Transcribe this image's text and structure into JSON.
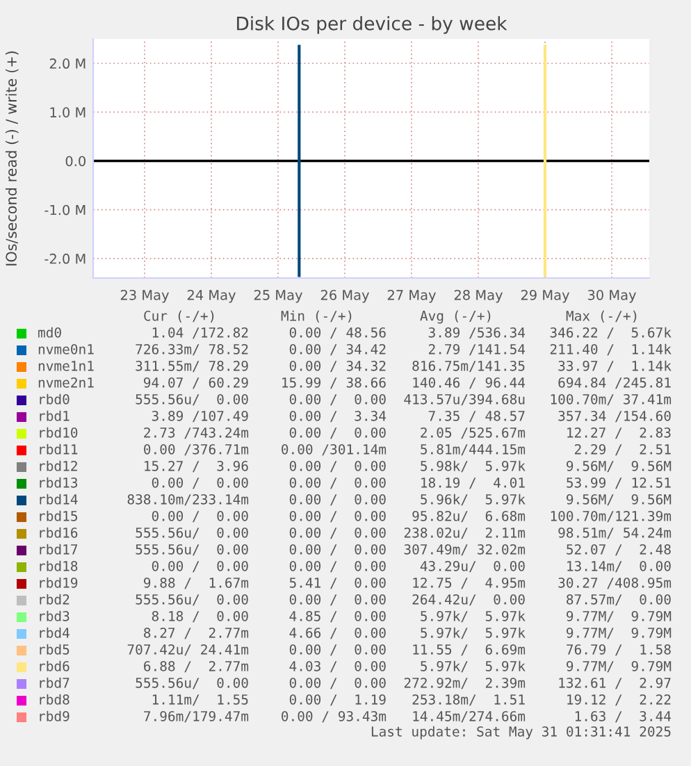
{
  "chart_data": {
    "type": "line",
    "title": "Disk IOs per device - by week",
    "ylabel": "IOs/second read (-) / write (+)",
    "xlim": [
      "2025-05-22T17:30",
      "2025-05-31T01:30"
    ],
    "xticks": [
      {
        "value": "2025-05-23T12:00",
        "label": "23 May"
      },
      {
        "value": "2025-05-24T12:00",
        "label": "24 May"
      },
      {
        "value": "2025-05-25T12:00",
        "label": "25 May"
      },
      {
        "value": "2025-05-26T12:00",
        "label": "26 May"
      },
      {
        "value": "2025-05-27T12:00",
        "label": "27 May"
      },
      {
        "value": "2025-05-28T12:00",
        "label": "28 May"
      },
      {
        "value": "2025-05-29T12:00",
        "label": "29 May"
      },
      {
        "value": "2025-05-30T12:00",
        "label": "30 May"
      }
    ],
    "ylim": [
      -2.4,
      2.5
    ],
    "yticks": [
      {
        "value": -2,
        "label": "-2.0 M"
      },
      {
        "value": -1,
        "label": "-1.0 M"
      },
      {
        "value": 0,
        "label": "0.0"
      },
      {
        "value": 1,
        "label": "1.0 M"
      },
      {
        "value": 2,
        "label": "2.0 M"
      }
    ],
    "grid": true,
    "legend": "bottom",
    "marker": "none",
    "line_style": "solid",
    "ref_lines": [
      {
        "axis": "y",
        "value": 0,
        "color": "#000000"
      }
    ],
    "series": [
      {
        "name": "md0",
        "color": "#00cc00"
      },
      {
        "name": "nvme0n1",
        "color": "#0066b3"
      },
      {
        "name": "nvme1n1",
        "color": "#ff8000"
      },
      {
        "name": "nvme2n1",
        "color": "#ffcc00"
      },
      {
        "name": "rbd0",
        "color": "#330099"
      },
      {
        "name": "rbd1",
        "color": "#990099"
      },
      {
        "name": "rbd10",
        "color": "#ccff00"
      },
      {
        "name": "rbd11",
        "color": "#ff0000"
      },
      {
        "name": "rbd12",
        "color": "#808080"
      },
      {
        "name": "rbd13",
        "color": "#008f00"
      },
      {
        "name": "rbd14",
        "color": "#00487d",
        "x": [
          "2025-05-25T19:35",
          "2025-05-25T19:35"
        ],
        "values": [
          -2.35,
          2.35
        ]
      },
      {
        "name": "rbd15",
        "color": "#b35a00"
      },
      {
        "name": "rbd16",
        "color": "#b38f00"
      },
      {
        "name": "rbd17",
        "color": "#6b006b"
      },
      {
        "name": "rbd18",
        "color": "#8fb300"
      },
      {
        "name": "rbd19",
        "color": "#b30000"
      },
      {
        "name": "rbd2",
        "color": "#bebebe"
      },
      {
        "name": "rbd3",
        "color": "#80ff80"
      },
      {
        "name": "rbd4",
        "color": "#80c9ff"
      },
      {
        "name": "rbd5",
        "color": "#ffc080"
      },
      {
        "name": "rbd6",
        "color": "#ffe680",
        "x": [
          "2025-05-29T12:00",
          "2025-05-29T12:00"
        ],
        "values": [
          -2.35,
          2.35
        ]
      },
      {
        "name": "rbd7",
        "color": "#aa80ff"
      },
      {
        "name": "rbd8",
        "color": "#ee00cc"
      },
      {
        "name": "rbd9",
        "color": "#ff8080"
      }
    ],
    "annotations": [
      "Cur (-/+)",
      "Min (-/+)",
      "Avg (-/+)",
      "Max (-/+)",
      "1.04 /172.82",
      "0.00 / 48.56",
      "3.89 /536.34",
      "346.22 /  5.67k",
      "726.33m/ 78.52",
      "0.00 / 34.42",
      "2.79 /141.54",
      "211.40 /  1.14k",
      "311.55m/ 78.29",
      "0.00 / 34.32",
      "816.75m/141.35",
      "33.97 /  1.14k",
      "94.07 / 60.29",
      "15.99 / 38.66",
      "140.46 / 96.44",
      "694.84 /245.81",
      "555.56u/  0.00",
      "0.00 /  0.00",
      "413.57u/394.68u",
      "100.70m/ 37.41m",
      "3.89 /107.49",
      "0.00 /  3.34",
      "7.35 / 48.57",
      "357.34 /154.60",
      "2.73 /743.24m",
      "0.00 /  0.00",
      "2.05 /525.67m",
      "12.27 /  2.83",
      "0.00 /376.71m",
      "0.00 /301.14m",
      "5.81m/444.15m",
      "2.29 /  2.51",
      "15.27 /  3.96",
      "0.00 /  0.00",
      "5.98k/  5.97k",
      "9.56M/  9.56M",
      "0.00 /  0.00",
      "0.00 /  0.00",
      "18.19 /  4.01",
      "53.99 / 12.51",
      "838.10m/233.14m",
      "0.00 /  0.00",
      "5.96k/  5.97k",
      "9.56M/  9.56M",
      "0.00 /  0.00",
      "0.00 /  0.00",
      "95.82u/  6.68m",
      "100.70m/121.39m",
      "555.56u/  0.00",
      "0.00 /  0.00",
      "238.02u/  2.11m",
      "98.51m/ 54.24m",
      "555.56u/  0.00",
      "0.00 /  0.00",
      "307.49m/ 32.02m",
      "52.07 /  2.48",
      "0.00 /  0.00",
      "0.00 /  0.00",
      "43.29u/  0.00",
      "13.14m/  0.00",
      "9.88 /  1.67m",
      "5.41 /  0.00",
      "12.75 /  4.95m",
      "30.27 /408.95m",
      "555.56u/  0.00",
      "0.00 /  0.00",
      "264.42u/  0.00",
      "87.57m/  0.00",
      "8.18 /  0.00",
      "4.85 /  0.00",
      "5.97k/  5.97k",
      "9.77M/  9.79M",
      "8.27 /  2.77m",
      "4.66 /  0.00",
      "5.97k/  5.97k",
      "9.77M/  9.79M",
      "707.42u/ 24.41m",
      "0.00 /  0.00",
      "11.55 /  6.69m",
      "76.79 /  1.58",
      "6.88 /  2.77m",
      "4.03 /  0.00",
      "5.97k/  5.97k",
      "9.77M/  9.79M",
      "555.56u/  0.00",
      "0.00 /  0.00",
      "272.92m/  2.39m",
      "132.61 /  2.97",
      "1.11m/  1.55",
      "0.00 /  1.19",
      "253.18m/  1.51",
      "19.12 /  2.22",
      "7.96m/179.47m",
      "0.00 / 93.43m",
      "14.45m/274.66m",
      "1.63 /  3.44",
      "Last update: Sat May 31 01:31:41 2025"
    ]
  }
}
